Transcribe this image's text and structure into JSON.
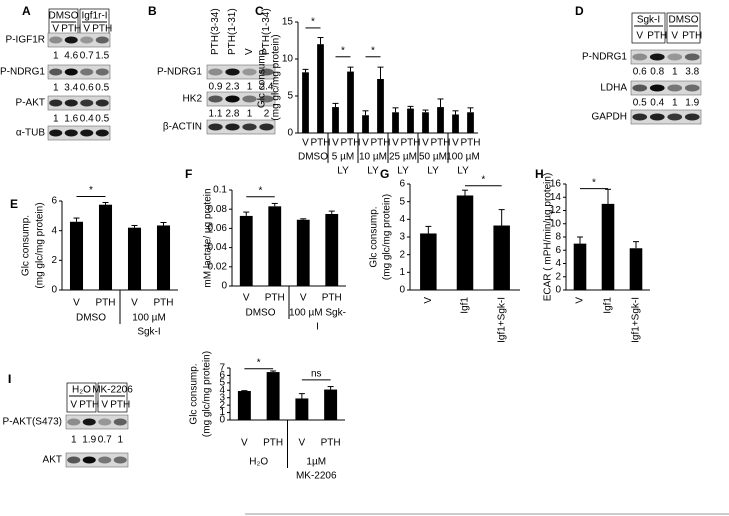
{
  "blots": [
    {
      "panel": "A",
      "conditions": [
        "DMSO",
        "Igf1r-I"
      ],
      "lanes": [
        "V",
        "PTH",
        "V",
        "PTH"
      ],
      "rows": [
        {
          "name": "P-IGF1R",
          "quant": [
            1,
            4.6,
            0.7,
            1.5
          ]
        },
        {
          "name": "P-NDRG1",
          "quant": [
            1,
            3.4,
            0.6,
            0.5
          ]
        },
        {
          "name": "P-AKT",
          "quant": [
            1,
            1.6,
            0.4,
            0.5
          ]
        },
        {
          "name": "α-TUB"
        }
      ]
    },
    {
      "panel": "B",
      "lanes": [
        "PTH(3-34)",
        "PTH(1-31)",
        "V",
        "PTH(1-34)"
      ],
      "rows": [
        {
          "name": "P-NDRG1",
          "quant": [
            0.9,
            2.3,
            1,
            2.4
          ]
        },
        {
          "name": "HK2",
          "quant": [
            1.1,
            2.8,
            1,
            2
          ]
        },
        {
          "name": "β-ACTIN"
        }
      ]
    },
    {
      "panel": "D",
      "conditions": [
        "Sgk-I",
        "DMSO"
      ],
      "lanes": [
        "V",
        "PTH",
        "V",
        "PTH"
      ],
      "rows": [
        {
          "name": "P-NDRG1",
          "quant": [
            0.6,
            0.8,
            1,
            3.8
          ]
        },
        {
          "name": "LDHA",
          "quant": [
            0.5,
            0.4,
            1,
            1.9
          ]
        },
        {
          "name": "GAPDH"
        }
      ]
    },
    {
      "panel": "I",
      "conditions": [
        "H₂O",
        "MK-2206"
      ],
      "lanes": [
        "V",
        "PTH",
        "V",
        "PTH"
      ],
      "rows": [
        {
          "name": "P-AKT(S473)",
          "quant": [
            1,
            1.9,
            0.7,
            1
          ]
        },
        {
          "name": "AKT"
        }
      ]
    }
  ],
  "chart_data": [
    {
      "panel": "C",
      "type": "bar",
      "ylabel": [
        "Glc consump.",
        "(mg glc/mg protein)"
      ],
      "categories": [
        "V",
        "PTH",
        "V",
        "PTH",
        "V",
        "PTH",
        "V",
        "PTH",
        "V",
        "PTH",
        "V",
        "PTH"
      ],
      "groups": [
        [
          "DMSO"
        ],
        [
          "5 µM",
          "LY"
        ],
        [
          "10 µM",
          "LY"
        ],
        [
          "25 µM",
          "LY"
        ],
        [
          "50 µM",
          "LY"
        ],
        [
          "100 µM",
          "LY"
        ]
      ],
      "values": [
        8.2,
        12,
        3.5,
        8.3,
        2.4,
        7.3,
        2.8,
        3.3,
        2.8,
        3.5,
        2.5,
        2.8
      ],
      "errors": [
        0.4,
        0.9,
        0.5,
        0.6,
        0.6,
        1.6,
        0.6,
        0.3,
        0.3,
        1.1,
        0.5,
        0.6
      ],
      "ylim": [
        0,
        15
      ],
      "yticks": [
        0,
        5,
        10,
        15
      ],
      "color": "#000000",
      "annotations": [
        "*",
        "*",
        "*"
      ]
    },
    {
      "panel": "E",
      "type": "bar",
      "ylabel": [
        "Glc consump.",
        "(mg glc/mg protein)"
      ],
      "categories": [
        "V",
        "PTH",
        "V",
        "PTH"
      ],
      "groups": [
        [
          "DMSO"
        ],
        [
          "100 µM",
          "Sgk-I"
        ]
      ],
      "values": [
        4.6,
        5.75,
        4.2,
        4.35
      ],
      "errors": [
        0.25,
        0.15,
        0.15,
        0.2
      ],
      "ylim": [
        0,
        6
      ],
      "yticks": [
        0,
        2,
        4,
        6
      ],
      "color": "#000000",
      "annotations": [
        "*"
      ]
    },
    {
      "panel": "F",
      "type": "bar",
      "ylabel": [
        "mM lactate/ µg protein"
      ],
      "categories": [
        "V",
        "PTH",
        "V",
        "PTH"
      ],
      "groups": [
        [
          "DMSO"
        ],
        [
          "100 µM  Sgk-",
          "I"
        ]
      ],
      "values": [
        0.073,
        0.083,
        0.069,
        0.075
      ],
      "errors": [
        0.004,
        0.003,
        0.001,
        0.003
      ],
      "ylim": [
        0,
        0.1
      ],
      "yticks": [
        0,
        0.02,
        0.04,
        0.06,
        0.08,
        0.1
      ],
      "color": "#000000",
      "annotations": [
        "*"
      ]
    },
    {
      "panel": "G",
      "type": "bar",
      "ylabel": [
        "Glc consump.",
        "(mg glc/mg protein)"
      ],
      "categories": [
        "V",
        "Igf1",
        "Igf1+Sgk-I"
      ],
      "values": [
        3.2,
        5.35,
        3.65
      ],
      "errors": [
        0.4,
        0.3,
        0.9
      ],
      "ylim": [
        0,
        6
      ],
      "yticks": [
        0,
        1,
        2,
        3,
        4,
        5,
        6
      ],
      "color": "#000000",
      "annotations": [
        "*"
      ]
    },
    {
      "panel": "H",
      "type": "bar",
      "ylabel": [
        "ECAR ( mPH/min/µg protein)"
      ],
      "categories": [
        "V",
        "Igf1",
        "Igf1+Sgk-I"
      ],
      "values": [
        7,
        13,
        6.3
      ],
      "errors": [
        1,
        2.2,
        1
      ],
      "ylim": [
        0,
        16
      ],
      "yticks": [
        0,
        2,
        4,
        6,
        8,
        10,
        12,
        14,
        16
      ],
      "color": "#000000",
      "annotations": [
        "*"
      ]
    },
    {
      "panel": "I",
      "type": "bar",
      "ylabel": [
        "Glc consump.",
        "(mg glc/mg protein)"
      ],
      "categories": [
        "V",
        "PTH",
        "V",
        "PTH"
      ],
      "groups": [
        [
          "H₂O"
        ],
        [
          "1µM",
          "MK-2206"
        ]
      ],
      "values": [
        3.9,
        6.45,
        2.9,
        4.1
      ],
      "errors": [
        0.05,
        0.15,
        0.65,
        0.4
      ],
      "ylim": [
        0,
        7
      ],
      "yticks": [
        0,
        1,
        2,
        3,
        4,
        5,
        6,
        7
      ],
      "color": "#000000",
      "annotations": [
        "*",
        "ns"
      ]
    }
  ]
}
